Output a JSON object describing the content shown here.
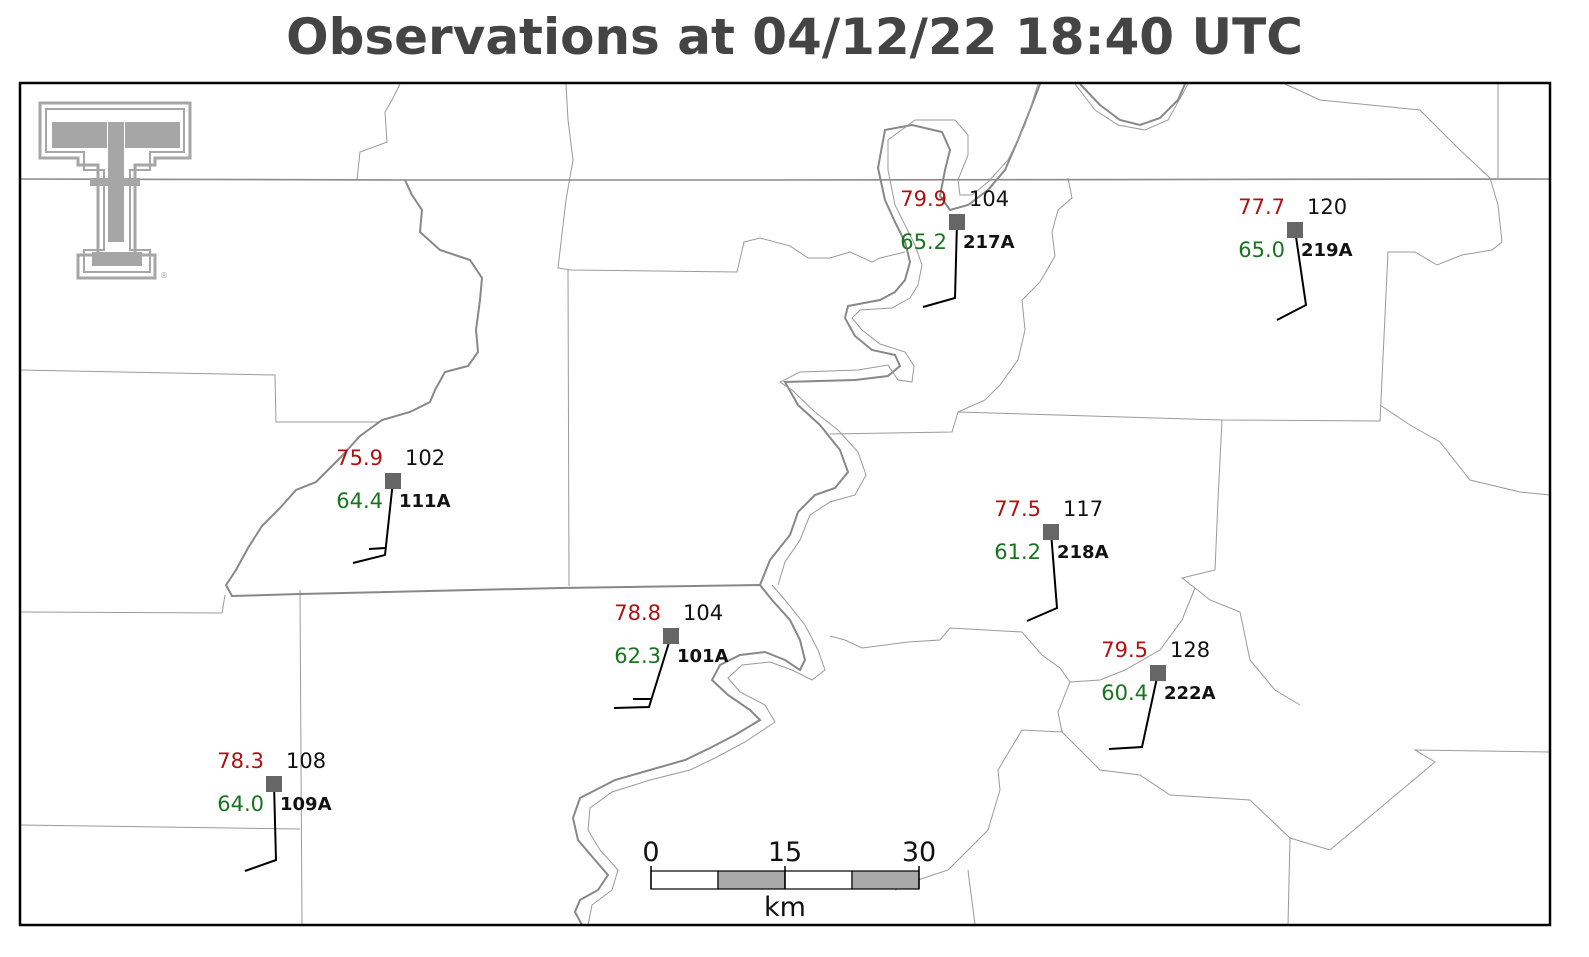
{
  "title": "Observations at 04/12/22 18:40 UTC",
  "scale_bar": {
    "ticks": [
      "0",
      "15",
      "30"
    ],
    "unit": "km"
  },
  "stations": [
    {
      "id": "217A",
      "temp": "79.9",
      "dewpoint": "65.2",
      "pressure": "104"
    },
    {
      "id": "219A",
      "temp": "77.7",
      "dewpoint": "65.0",
      "pressure": "120"
    },
    {
      "id": "111A",
      "temp": "75.9",
      "dewpoint": "64.4",
      "pressure": "102"
    },
    {
      "id": "218A",
      "temp": "77.5",
      "dewpoint": "61.2",
      "pressure": "117"
    },
    {
      "id": "101A",
      "temp": "78.8",
      "dewpoint": "62.3",
      "pressure": "104"
    },
    {
      "id": "222A",
      "temp": "79.5",
      "dewpoint": "60.4",
      "pressure": "128"
    },
    {
      "id": "109A",
      "temp": "78.3",
      "dewpoint": "64.0",
      "pressure": "108"
    }
  ],
  "colors": {
    "temperature": "#b01010",
    "dewpoint": "#16741e",
    "station_marker": "#666666",
    "title": "#444444",
    "county_lines": "#9a9a9a",
    "state_lines": "#8a8a8a"
  },
  "logo": "texas-tech-double-t"
}
